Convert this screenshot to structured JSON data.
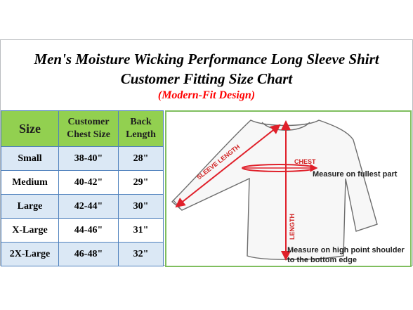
{
  "title": {
    "line1": "Men's Moisture Wicking Performance Long Sleeve Shirt",
    "line2": "Customer Fitting Size Chart",
    "line3": "(Modern-Fit Design)"
  },
  "table": {
    "headers": [
      "Size",
      "Customer Chest Size",
      "Back Length"
    ],
    "header_lines": {
      "chest": [
        "Customer",
        "Chest Size"
      ],
      "back": [
        "Back",
        "Length"
      ]
    },
    "rows": [
      {
        "size": "Small",
        "chest": "38-40\"",
        "back": "28\""
      },
      {
        "size": "Medium",
        "chest": "40-42\"",
        "back": "29\""
      },
      {
        "size": "Large",
        "chest": "42-44\"",
        "back": "30\""
      },
      {
        "size": "X-Large",
        "chest": "44-46\"",
        "back": "31\""
      },
      {
        "size": "2X-Large",
        "chest": "46-48\"",
        "back": "32\""
      }
    ]
  },
  "diagram": {
    "sleeve_label": "SLEEVE LENGTH",
    "chest_label": "CHEST",
    "length_label": "LENGTH",
    "chest_note": "Measure on fullest part",
    "length_note_line1": "Measure on high point shoulder",
    "length_note_line2": "to the bottom edge"
  },
  "colors": {
    "header_green": "#92d050",
    "row_blue": "#dbe8f5",
    "border_blue": "#4f81bd",
    "accent_red": "#ff0000",
    "arrow_red": "#e0202a",
    "diagram_border": "#7fbe5e"
  }
}
